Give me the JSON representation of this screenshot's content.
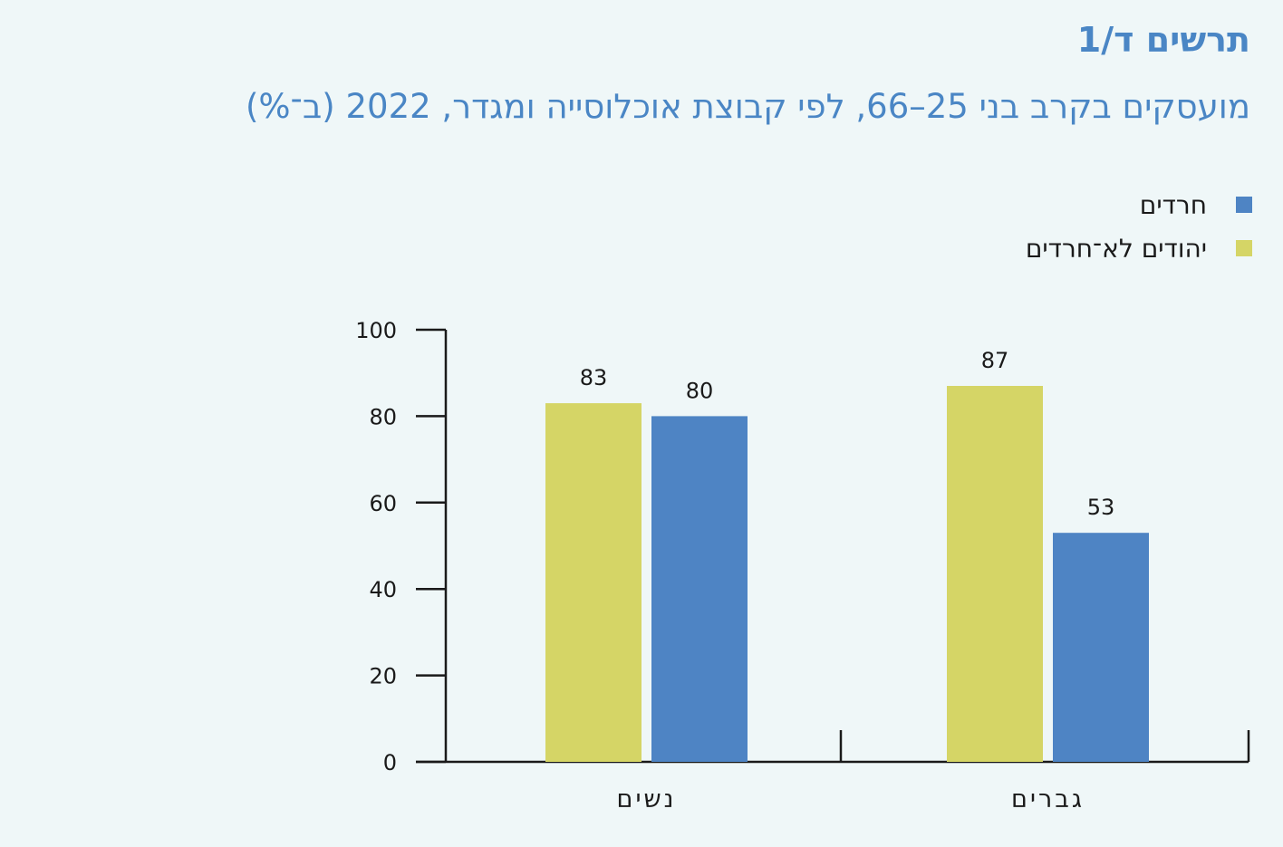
{
  "figure": {
    "label": "תרשים ד/1"
  },
  "chart_data": {
    "type": "bar",
    "title": "מועסקים בקרב בני 25–66, לפי קבוצת אוכלוסייה ומגדר, 2022 (ב־%)",
    "categories": [
      "גברים",
      "נשים"
    ],
    "series": [
      {
        "name": "חרדים",
        "color": "#4e84c4",
        "values": [
          53,
          80
        ]
      },
      {
        "name": "יהודים לא־חרדים",
        "color": "#d5d566",
        "values": [
          87,
          83
        ]
      }
    ],
    "yticks": [
      0,
      20,
      40,
      60,
      80,
      100
    ],
    "ylim": [
      0,
      100
    ],
    "xlabel": "",
    "ylabel": "",
    "grid": false,
    "legend_position": "top-right"
  }
}
